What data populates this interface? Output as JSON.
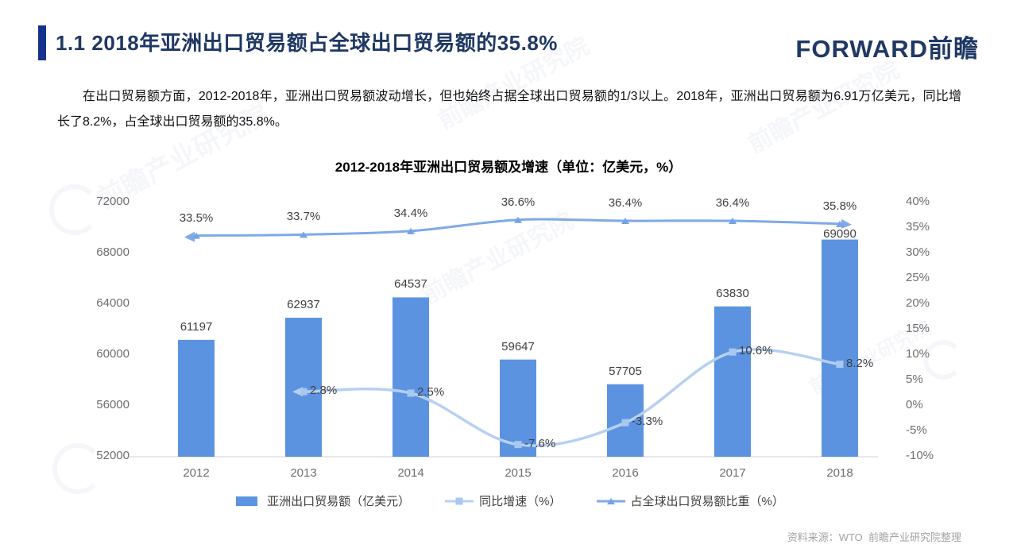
{
  "slide": {
    "header": {
      "title": "1.1 2018年亚洲出口贸易额占全球出口贸易额的35.8%",
      "logo_text": "FORWARD前瞻"
    },
    "paragraph": "在出口贸易额方面，2012-2018年，亚洲出口贸易额波动增长，但也始终占据全球出口贸易额的1/3以上。2018年，亚洲出口贸易额为6.91万亿美元，同比增长了8.2%，占全球出口贸易额的35.8%。",
    "source_note": "资料来源：WTO  前瞻产业研究院整理",
    "watermark_text": "前瞻产业研究院",
    "accent_color": "#16338C",
    "title_color": "#1F3864"
  },
  "chart_data": {
    "type": "bar",
    "subtype": "combo-bar-line",
    "title": "2012-2018年亚洲出口贸易额及增速（单位：亿美元，%）",
    "categories": [
      "2012",
      "2013",
      "2014",
      "2015",
      "2016",
      "2017",
      "2018"
    ],
    "series": [
      {
        "name": "亚洲出口贸易额（亿美元）",
        "type": "bar",
        "axis": "left",
        "values": [
          61197,
          62937,
          64537,
          59647,
          57705,
          63830,
          69090
        ],
        "labels": [
          "61197",
          "62937",
          "64537",
          "59647",
          "57705",
          "63830",
          "69090"
        ],
        "color": "#5B93E1"
      },
      {
        "name": "同比增速（%）",
        "type": "line",
        "axis": "right",
        "marker": "square",
        "smooth": true,
        "values": [
          null,
          2.8,
          2.5,
          -7.6,
          -3.3,
          10.6,
          8.2
        ],
        "labels": [
          "",
          "2.8%",
          "2.5%",
          "-7.6%",
          "-3.3%",
          "10.6%",
          "8.2%"
        ],
        "color": "#B7D0F2",
        "marker_color": "#A9C8F0"
      },
      {
        "name": "占全球出口贸易额比重（%）",
        "type": "line",
        "axis": "right",
        "marker": "triangle",
        "smooth": true,
        "values": [
          33.5,
          33.7,
          34.4,
          36.6,
          36.4,
          36.4,
          35.8
        ],
        "labels": [
          "33.5%",
          "33.7%",
          "34.4%",
          "36.6%",
          "36.4%",
          "36.4%",
          "35.8%"
        ],
        "color": "#7FA9E8",
        "marker_color": "#74A3E6"
      }
    ],
    "left_axis": {
      "label_values": [
        "72000",
        "68000",
        "64000",
        "60000",
        "56000",
        "52000"
      ],
      "min": 52000,
      "max": 72000
    },
    "right_axis": {
      "label_values": [
        "40%",
        "35%",
        "30%",
        "25%",
        "20%",
        "15%",
        "10%",
        "5%",
        "0%",
        "-5%",
        "-10%"
      ],
      "min": -10,
      "max": 40
    },
    "grid": false,
    "legend_position": "bottom",
    "axis_line_color": "#CDD2D9",
    "axis_text_color": "#6E6E6E",
    "label_text_color": "#404040"
  }
}
